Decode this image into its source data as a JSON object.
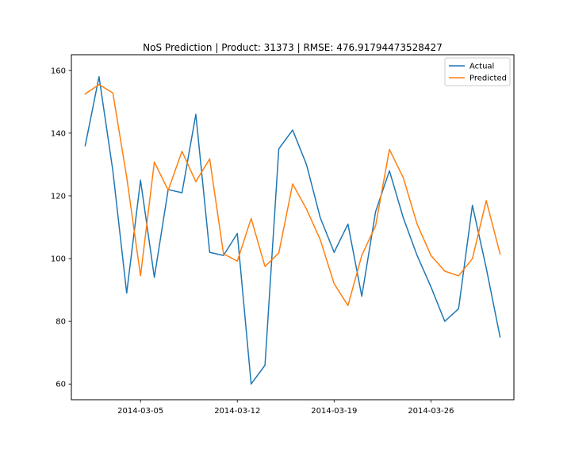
{
  "chart_data": {
    "type": "line",
    "title": "NoS Prediction | Product: 31373 | RMSE: 476.91794473528427",
    "xlabel": "",
    "ylabel": "",
    "x_type": "date",
    "x": [
      "2014-03-01",
      "2014-03-02",
      "2014-03-03",
      "2014-03-04",
      "2014-03-05",
      "2014-03-06",
      "2014-03-07",
      "2014-03-08",
      "2014-03-09",
      "2014-03-10",
      "2014-03-11",
      "2014-03-12",
      "2014-03-13",
      "2014-03-14",
      "2014-03-15",
      "2014-03-16",
      "2014-03-17",
      "2014-03-18",
      "2014-03-19",
      "2014-03-20",
      "2014-03-21",
      "2014-03-22",
      "2014-03-23",
      "2014-03-24",
      "2014-03-25",
      "2014-03-26",
      "2014-03-27",
      "2014-03-28",
      "2014-03-29",
      "2014-03-30",
      "2014-03-31"
    ],
    "series": [
      {
        "name": "Actual",
        "color": "#1f77b4",
        "values": [
          136,
          158,
          128,
          89,
          125,
          94,
          122,
          121,
          146,
          102,
          101,
          108,
          60,
          66,
          135,
          141,
          130,
          113,
          102,
          111,
          88,
          115,
          128,
          113,
          101,
          91,
          80,
          84,
          117,
          97,
          75
        ]
      },
      {
        "name": "Predicted",
        "color": "#ff7f0e",
        "values": [
          152.5,
          155.5,
          152.8,
          126,
          94.5,
          130.8,
          121.8,
          134.2,
          124.5,
          131.8,
          101.5,
          99.2,
          112.8,
          97.5,
          101.8,
          123.8,
          115.8,
          106,
          92,
          85,
          101,
          110.5,
          134.8,
          125.8,
          111,
          101,
          96,
          94.5,
          100,
          118.5,
          101.5
        ]
      }
    ],
    "xticks": [
      {
        "value": "2014-03-05",
        "label": "2014-03-05"
      },
      {
        "value": "2014-03-12",
        "label": "2014-03-12"
      },
      {
        "value": "2014-03-19",
        "label": "2014-03-19"
      },
      {
        "value": "2014-03-26",
        "label": "2014-03-26"
      }
    ],
    "yticks": [
      60,
      80,
      100,
      120,
      140,
      160
    ],
    "ylim": [
      55,
      165
    ],
    "xlim": [
      "2014-02-28",
      "2014-04-01"
    ],
    "grid": false,
    "legend_position": "top-right"
  }
}
